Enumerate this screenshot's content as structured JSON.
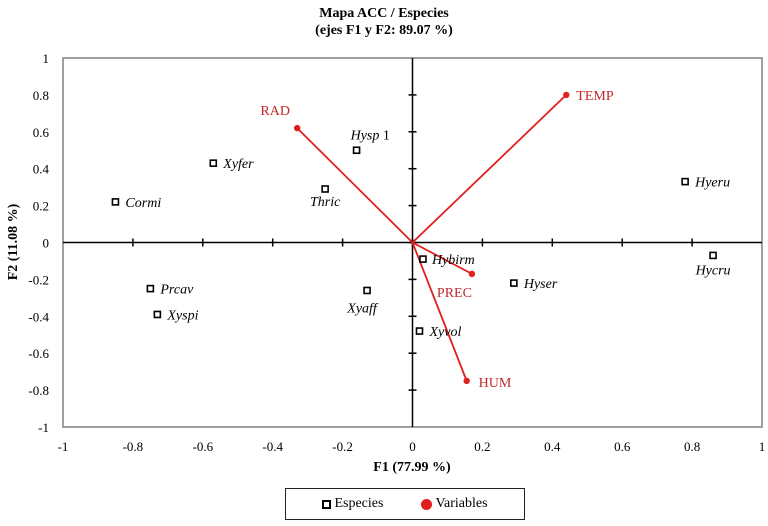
{
  "title": {
    "line1": "Mapa ACC / Especies",
    "line2": "(ejes F1 y F2: 89.07 %)"
  },
  "colors": {
    "variables": "#e0201f",
    "variable_label": "#c0282a",
    "species": "#000000",
    "axis": "#000000",
    "frame": "#808080"
  },
  "legend": {
    "species_label": "Especies",
    "variables_label": "Variables"
  },
  "chart_data": {
    "type": "scatter",
    "title": "Mapa ACC / Especies (ejes F1 y F2: 89.07 %)",
    "xlabel": "F1 (77.99 %)",
    "ylabel": "F2 (11.08 %)",
    "xlim": [
      -1,
      1
    ],
    "ylim": [
      -1,
      1
    ],
    "xticks": [
      "-1",
      "-0.8",
      "-0.6",
      "-0.4",
      "-0.2",
      "0",
      "0.2",
      "0.4",
      "0.6",
      "0.8",
      "1"
    ],
    "yticks": [
      "1",
      "0.8",
      "0.6",
      "0.4",
      "0.2",
      "0",
      "-0.2",
      "-0.4",
      "-0.6",
      "-0.8",
      "-1"
    ],
    "grid": false,
    "legend_position": "bottom",
    "series": [
      {
        "name": "Especies",
        "marker": "square-open",
        "points": [
          {
            "label": "Cormi",
            "x": -0.85,
            "y": 0.22
          },
          {
            "label": "Xyfer",
            "x": -0.57,
            "y": 0.43
          },
          {
            "label": "Hysp 1",
            "x": -0.16,
            "y": 0.5
          },
          {
            "label": "Thric",
            "x": -0.25,
            "y": 0.29
          },
          {
            "label": "Hyeru",
            "x": 0.78,
            "y": 0.33
          },
          {
            "label": "Hycru",
            "x": 0.86,
            "y": -0.07
          },
          {
            "label": "Hybirm",
            "x": 0.03,
            "y": -0.09
          },
          {
            "label": "Hyser",
            "x": 0.29,
            "y": -0.22
          },
          {
            "label": "Xyvol",
            "x": 0.02,
            "y": -0.48
          },
          {
            "label": "Prcav",
            "x": -0.75,
            "y": -0.25
          },
          {
            "label": "Xyspi",
            "x": -0.73,
            "y": -0.39
          },
          {
            "label": "Xyaff",
            "x": -0.13,
            "y": -0.26
          }
        ]
      },
      {
        "name": "Variables",
        "marker": "circle-filled",
        "vectors_from_origin": true,
        "points": [
          {
            "label": "RAD",
            "x": -0.33,
            "y": 0.62
          },
          {
            "label": "TEMP",
            "x": 0.44,
            "y": 0.8
          },
          {
            "label": "PREC",
            "x": 0.17,
            "y": -0.17
          },
          {
            "label": "HUM",
            "x": 0.155,
            "y": -0.75
          }
        ]
      }
    ]
  }
}
